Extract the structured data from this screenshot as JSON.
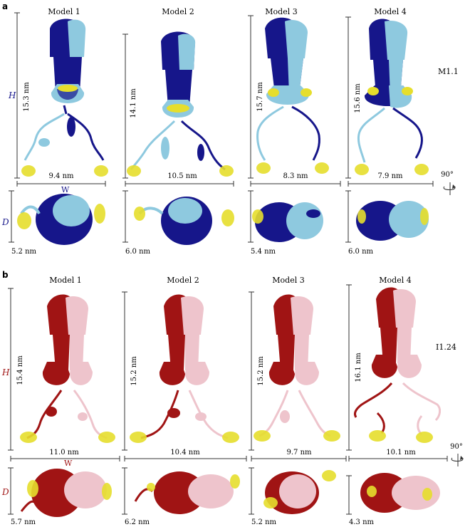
{
  "panels": [
    {
      "letter": "a",
      "label": "M1.1",
      "colors": {
        "dark": "#16168a",
        "light": "#8ec9df",
        "ligand": "#e6de2c"
      },
      "axis_labels": {
        "height": "H",
        "width": "W",
        "depth": "D"
      },
      "models": [
        {
          "title": "Model 1",
          "height": "15.3 nm",
          "width": "9.4 nm",
          "depth": "5.2 nm"
        },
        {
          "title": "Model 2",
          "height": "14.1 nm",
          "width": "10.5 nm",
          "depth": "6.0 nm"
        },
        {
          "title": "Model 3",
          "height": "15.7 nm",
          "width": "8.3 nm",
          "depth": "5.4 nm"
        },
        {
          "title": "Model 4",
          "height": "15.6 nm",
          "width": "7.9 nm",
          "depth": "6.0 nm"
        }
      ],
      "rotation": "90°"
    },
    {
      "letter": "b",
      "label": "I1.24",
      "colors": {
        "dark": "#a01414",
        "light": "#eec4cc",
        "ligand": "#e6de2c"
      },
      "axis_labels": {
        "height": "H",
        "width": "W",
        "depth": "D"
      },
      "models": [
        {
          "title": "Model 1",
          "height": "15.4 nm",
          "width": "11.0 nm",
          "depth": "5.7 nm"
        },
        {
          "title": "Model 2",
          "height": "15.2 nm",
          "width": "10.4 nm",
          "depth": "6.2 nm"
        },
        {
          "title": "Model 3",
          "height": "15.2 nm",
          "width": "9.7 nm",
          "depth": "5.2 nm"
        },
        {
          "title": "Model 4",
          "height": "16.1 nm",
          "width": "10.1 nm",
          "depth": "4.3 nm"
        }
      ],
      "rotation": "90°"
    }
  ]
}
